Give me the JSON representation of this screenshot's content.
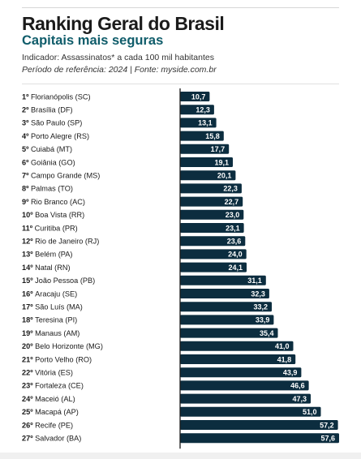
{
  "header": {
    "title": "Ranking Geral do Brasil",
    "subtitle": "Capitais mais seguras",
    "indicator": "Indicador: Assassinatos* a cada 100 mil habitantes",
    "period": "Período de referência: 2024 | Fonte: myside.com.br"
  },
  "colors": {
    "bar": "#0c2d3f",
    "subtitle": "#0f5c6a",
    "axis": "#1a1a1a"
  },
  "chart_data": {
    "type": "bar",
    "orientation": "horizontal",
    "categories": [
      "Florianópolis (SC)",
      "Brasília (DF)",
      "São Paulo (SP)",
      "Porto Alegre (RS)",
      "Cuiabá (MT)",
      "Goiânia (GO)",
      "Campo Grande (MS)",
      "Palmas (TO)",
      "Rio Branco (AC)",
      "Boa Vista (RR)",
      "Curitiba (PR)",
      "Rio de Janeiro (RJ)",
      "Belém (PA)",
      "Natal (RN)",
      "João Pessoa (PB)",
      "Aracaju (SE)",
      "São Luís (MA)",
      "Teresina (PI)",
      "Manaus (AM)",
      "Belo Horizonte (MG)",
      "Porto Velho (RO)",
      "Vitória (ES)",
      "Fortaleza (CE)",
      "Maceió (AL)",
      "Macapá (AP)",
      "Recife (PE)",
      "Salvador (BA)"
    ],
    "ranks": [
      "1º",
      "2º",
      "3º",
      "4º",
      "5º",
      "6º",
      "7º",
      "8º",
      "9º",
      "10º",
      "11º",
      "12º",
      "13º",
      "14º",
      "15º",
      "16º",
      "17º",
      "18º",
      "19º",
      "20º",
      "21º",
      "22º",
      "23º",
      "24º",
      "25º",
      "26º",
      "27º"
    ],
    "values": [
      10.7,
      12.3,
      13.1,
      15.8,
      17.7,
      19.1,
      20.1,
      22.3,
      22.7,
      23.0,
      23.1,
      23.6,
      24.0,
      24.1,
      31.1,
      32.3,
      33.2,
      33.9,
      35.4,
      41.0,
      41.8,
      43.9,
      46.6,
      47.3,
      51.0,
      57.2,
      57.6
    ],
    "value_labels": [
      "10,7",
      "12,3",
      "13,1",
      "15,8",
      "17,7",
      "19,1",
      "20,1",
      "22,3",
      "22,7",
      "23,0",
      "23,1",
      "23,6",
      "24,0",
      "24,1",
      "31,1",
      "32,3",
      "33,2",
      "33,9",
      "35,4",
      "41,0",
      "41,8",
      "43,9",
      "46,6",
      "47,3",
      "51,0",
      "57,2",
      "57,6"
    ],
    "xlim": [
      0,
      57.6
    ],
    "grid": false
  }
}
